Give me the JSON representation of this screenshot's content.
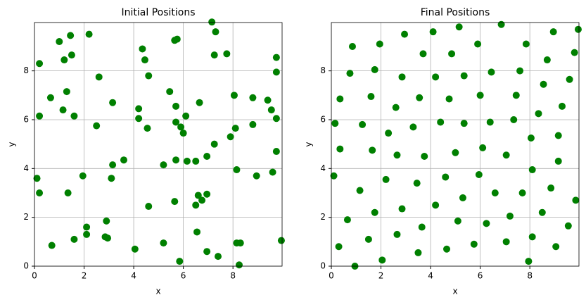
{
  "chart_data": [
    {
      "type": "scatter",
      "title": "Initial Positions",
      "x_label": "x",
      "y_label": "y",
      "color": "#008000",
      "grid": true,
      "xlim": [
        0,
        9.98
      ],
      "ylim": [
        0,
        9.98
      ],
      "xticks": [
        0,
        2,
        4,
        6,
        8
      ],
      "yticks": [
        0,
        2,
        4,
        6,
        8
      ],
      "x": [
        0.1,
        0.2,
        0.2,
        0.2,
        0.65,
        0.7,
        1.0,
        1.2,
        1.15,
        1.3,
        1.35,
        1.45,
        1.5,
        1.6,
        1.6,
        1.95,
        2.1,
        2.1,
        2.2,
        2.5,
        2.6,
        2.85,
        2.9,
        2.95,
        3.15,
        3.15,
        3.1,
        3.6,
        4.05,
        4.2,
        4.2,
        4.35,
        4.45,
        4.55,
        4.6,
        4.6,
        5.2,
        5.2,
        5.45,
        5.65,
        5.75,
        5.7,
        5.7,
        5.7,
        5.65,
        5.85,
        5.9,
        6.0,
        6.1,
        6.15,
        6.5,
        6.5,
        6.55,
        6.6,
        6.65,
        6.75,
        6.95,
        6.95,
        6.95,
        7.15,
        7.25,
        7.3,
        7.25,
        7.4,
        7.75,
        7.9,
        8.05,
        8.1,
        8.15,
        8.15,
        8.3,
        8.25,
        8.8,
        8.8,
        8.95,
        9.4,
        9.55,
        9.6,
        9.75,
        9.75,
        9.75,
        9.75,
        9.95
      ],
      "values": [
        3.6,
        3.0,
        6.15,
        8.3,
        6.9,
        0.85,
        9.2,
        8.45,
        6.4,
        7.15,
        3.0,
        9.45,
        8.65,
        6.15,
        1.1,
        3.7,
        1.6,
        1.3,
        9.5,
        5.75,
        7.75,
        1.2,
        1.85,
        1.15,
        6.7,
        4.15,
        3.6,
        4.35,
        0.7,
        6.45,
        6.05,
        8.9,
        8.45,
        5.65,
        7.8,
        2.45,
        4.15,
        0.95,
        7.15,
        9.25,
        9.3,
        6.55,
        5.9,
        4.35,
        2.65,
        0.2,
        5.7,
        5.45,
        6.15,
        4.3,
        4.3,
        2.5,
        1.4,
        2.9,
        6.7,
        2.7,
        2.95,
        4.5,
        0.6,
        10.0,
        8.65,
        9.6,
        5.0,
        0.4,
        8.7,
        5.3,
        7.0,
        5.65,
        3.95,
        0.95,
        0.95,
        0.05,
        6.9,
        5.8,
        3.7,
        6.8,
        6.4,
        3.85,
        8.55,
        7.95,
        6.05,
        4.7,
        1.05
      ]
    },
    {
      "type": "scatter",
      "title": "Final Positions",
      "x_label": "x",
      "y_label": "y",
      "color": "#008000",
      "grid": true,
      "xlim": [
        0,
        9.98
      ],
      "ylim": [
        0,
        9.98
      ],
      "xticks": [
        0,
        2,
        4,
        6,
        8
      ],
      "yticks": [
        0,
        2,
        4,
        6,
        8
      ],
      "x": [
        0.15,
        0.1,
        0.35,
        0.35,
        0.3,
        0.65,
        0.75,
        0.85,
        0.95,
        1.15,
        1.25,
        1.5,
        1.6,
        1.65,
        1.75,
        1.75,
        1.95,
        2.05,
        2.2,
        2.3,
        2.6,
        2.65,
        2.65,
        2.85,
        2.85,
        2.95,
        3.3,
        3.45,
        3.5,
        3.55,
        3.65,
        3.7,
        3.75,
        4.1,
        4.2,
        4.2,
        4.4,
        4.6,
        4.65,
        4.75,
        4.85,
        5.0,
        5.1,
        5.15,
        5.3,
        5.35,
        5.35,
        5.75,
        5.9,
        5.95,
        6.0,
        6.1,
        6.25,
        6.4,
        6.45,
        6.6,
        6.85,
        7.05,
        7.05,
        7.2,
        7.35,
        7.45,
        7.6,
        7.7,
        7.85,
        7.95,
        8.05,
        8.1,
        8.1,
        8.35,
        8.5,
        8.55,
        8.7,
        8.85,
        8.95,
        9.05,
        9.15,
        9.15,
        9.3,
        9.55,
        9.6,
        9.8,
        9.85,
        9.95
      ],
      "values": [
        5.85,
        3.7,
        6.85,
        4.8,
        0.8,
        1.9,
        7.9,
        9.0,
        0.0,
        3.1,
        5.8,
        1.1,
        6.95,
        4.75,
        2.2,
        8.05,
        9.1,
        0.25,
        3.55,
        5.45,
        6.5,
        1.3,
        4.55,
        7.75,
        2.35,
        9.5,
        5.7,
        3.4,
        0.55,
        6.9,
        1.6,
        8.7,
        4.5,
        9.6,
        7.75,
        2.5,
        5.9,
        3.65,
        0.7,
        6.85,
        8.7,
        4.65,
        1.85,
        9.8,
        2.8,
        7.8,
        5.85,
        0.9,
        9.1,
        3.75,
        7.0,
        4.85,
        1.75,
        5.9,
        7.95,
        3.0,
        9.9,
        4.55,
        1.0,
        2.05,
        6.0,
        7.0,
        8.0,
        3.0,
        9.1,
        0.2,
        5.25,
        1.2,
        3.95,
        6.25,
        2.2,
        7.45,
        8.45,
        3.2,
        9.6,
        0.8,
        5.35,
        4.3,
        6.55,
        1.65,
        7.65,
        8.75,
        2.7,
        9.7
      ]
    }
  ]
}
